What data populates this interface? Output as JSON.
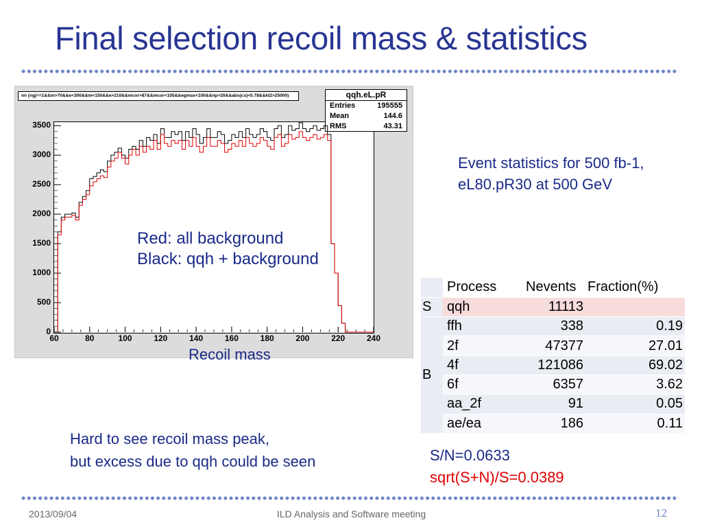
{
  "slide": {
    "title": "Final selection recoil mass & statistics",
    "page_number": "12",
    "footer_date": "2013/09/04",
    "footer_center": "ILD Analysis and Software meeting"
  },
  "chart_data": {
    "type": "bar",
    "style": "step-histogram",
    "cut_string": "nn (ngj==1&&m>70&&e<300&&m<150&&e>210&&mcor>87&&mcor<105&&egmax<100&&np>20&&abs(cs)<0.78&&kt2>25000)",
    "stat_box": {
      "name": "qqh.eL.pR",
      "entries_label": "Entries",
      "entries": "195555",
      "mean_label": "Mean",
      "mean": "144.6",
      "rms_label": "RMS",
      "rms": "43.31"
    },
    "xlabel": "Recoil mass",
    "ylabel": "",
    "xlim": [
      60,
      240
    ],
    "ylim": [
      0,
      3560
    ],
    "x_ticks": [
      60,
      80,
      100,
      120,
      140,
      160,
      180,
      200,
      220,
      240
    ],
    "y_ticks": [
      0,
      500,
      1000,
      1500,
      2000,
      2500,
      3000,
      3500
    ],
    "bin_width": 2,
    "x_start": 62,
    "series": [
      {
        "name": "Black: qqh + background",
        "color": "#000000",
        "values": [
          1700,
          1950,
          2000,
          2000,
          2020,
          1950,
          2200,
          2300,
          2400,
          2600,
          2640,
          2700,
          2750,
          2720,
          2900,
          3000,
          3050,
          3120,
          3000,
          2950,
          3100,
          3150,
          3100,
          3250,
          3150,
          3300,
          3250,
          3350,
          3200,
          3450,
          3300,
          3300,
          3400,
          3350,
          3400,
          3250,
          3400,
          3300,
          3450,
          3350,
          3200,
          3300,
          3450,
          3300,
          3300,
          3400,
          3350,
          3200,
          3250,
          3350,
          3300,
          3400,
          3300,
          3450,
          3350,
          3300,
          3350,
          3450,
          3400,
          3300,
          3250,
          3450,
          3500,
          3300,
          3350,
          3500,
          3420,
          3450,
          3550,
          3450,
          3400,
          3450,
          3500,
          3420,
          3450,
          3500,
          3350,
          1500,
          1000,
          450,
          150,
          0,
          0,
          0,
          0,
          0,
          0,
          0,
          0
        ]
      },
      {
        "name": "Red: all background",
        "color": "#e00000",
        "values": [
          1650,
          1900,
          1950,
          1950,
          1980,
          1900,
          2150,
          2250,
          2330,
          2480,
          2550,
          2600,
          2650,
          2620,
          2800,
          2900,
          2950,
          3050,
          2950,
          2850,
          3000,
          3100,
          3000,
          3150,
          3050,
          3150,
          3100,
          3250,
          3100,
          3350,
          3200,
          3150,
          3250,
          3200,
          3250,
          3100,
          3250,
          3150,
          3300,
          3150,
          3050,
          3150,
          3300,
          3150,
          3150,
          3250,
          3200,
          3050,
          3100,
          3200,
          3150,
          3250,
          3150,
          3300,
          3200,
          3150,
          3200,
          3300,
          3250,
          3150,
          3100,
          3300,
          3350,
          3150,
          3200,
          3350,
          3270,
          3300,
          3400,
          3300,
          3250,
          3300,
          3350,
          3270,
          3300,
          3350,
          3250,
          1500,
          1000,
          450,
          150,
          0,
          0,
          0,
          0,
          0,
          0,
          0,
          0
        ]
      }
    ],
    "legend_lines": [
      "Red: all background",
      "Black: qqh + background"
    ]
  },
  "notes": {
    "event_stats_line1": "Event statistics for 500 fb-1,",
    "event_stats_line2": "eL80.pR30 at 500 GeV",
    "hard_line1": "Hard to see recoil mass peak,",
    "hard_line2": "but excess due to qqh could be seen",
    "sn": "S/N=0.0633",
    "sqrt": "sqrt(S+N)/S=0.0389"
  },
  "table": {
    "headers": {
      "process": "Process",
      "nevents": "Nevents",
      "fraction": "Fraction(%)"
    },
    "signal_group": "S",
    "background_group": "B",
    "rows": [
      {
        "process": "qqh",
        "nevents": "11113",
        "fraction": ""
      },
      {
        "process": "ffh",
        "nevents": "338",
        "fraction": "0.19"
      },
      {
        "process": "2f",
        "nevents": "47377",
        "fraction": "27.01"
      },
      {
        "process": "4f",
        "nevents": "121086",
        "fraction": "69.02"
      },
      {
        "process": "6f",
        "nevents": "6357",
        "fraction": "3.62"
      },
      {
        "process": "aa_2f",
        "nevents": "91",
        "fraction": "0.05"
      },
      {
        "process": "ae/ea",
        "nevents": "186",
        "fraction": "0.11"
      }
    ]
  }
}
